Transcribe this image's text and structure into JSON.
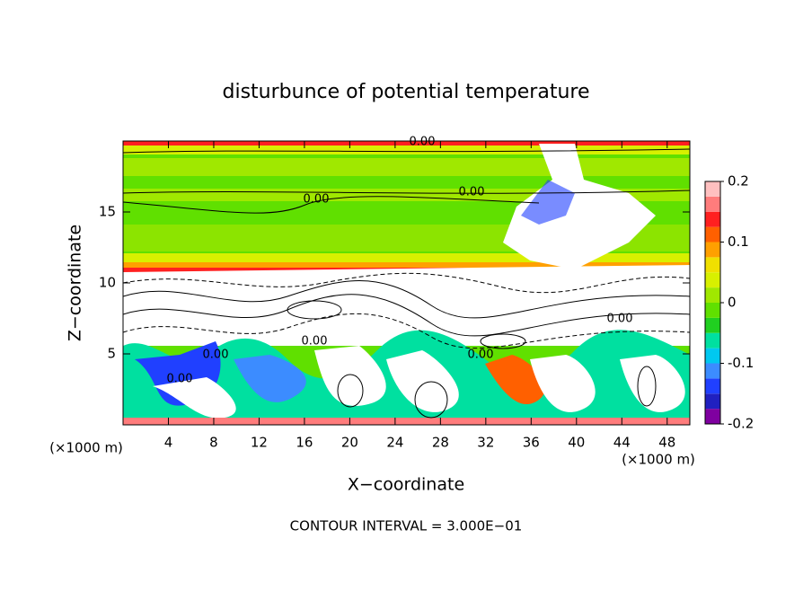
{
  "chart_data": {
    "type": "contour",
    "title": "disturbunce of potential temperature",
    "x_label": "X−coordinate",
    "y_label": "Z−coordinate",
    "x_unit": "(×1000 m)",
    "y_unit": "(×1000 m)",
    "footer": "CONTOUR INTERVAL = 3.000E−01",
    "xlim": [
      0,
      50
    ],
    "xticks": [
      4,
      8,
      12,
      16,
      20,
      24,
      28,
      32,
      36,
      40,
      44,
      48
    ],
    "ylim": [
      0,
      20
    ],
    "yticks": [
      5,
      10,
      15
    ],
    "contour_labels": [
      "0.00",
      "0.00",
      "0.00",
      "0.00",
      "0.00",
      "0.00",
      "0.00",
      "0.00"
    ],
    "colorbar": {
      "lim": [
        -0.2,
        0.2
      ],
      "ticks": [
        -0.2,
        -0.1,
        0,
        0.1,
        0.2
      ],
      "colors": [
        "#7f00a0",
        "#2020c0",
        "#2040ff",
        "#3c8cff",
        "#00c8f0",
        "#00e0a0",
        "#20d020",
        "#60e000",
        "#a0e800",
        "#d8f000",
        "#f0e000",
        "#ffa000",
        "#ff6000",
        "#ff2020",
        "#ff7c7c",
        "#ffc0c0"
      ]
    }
  }
}
